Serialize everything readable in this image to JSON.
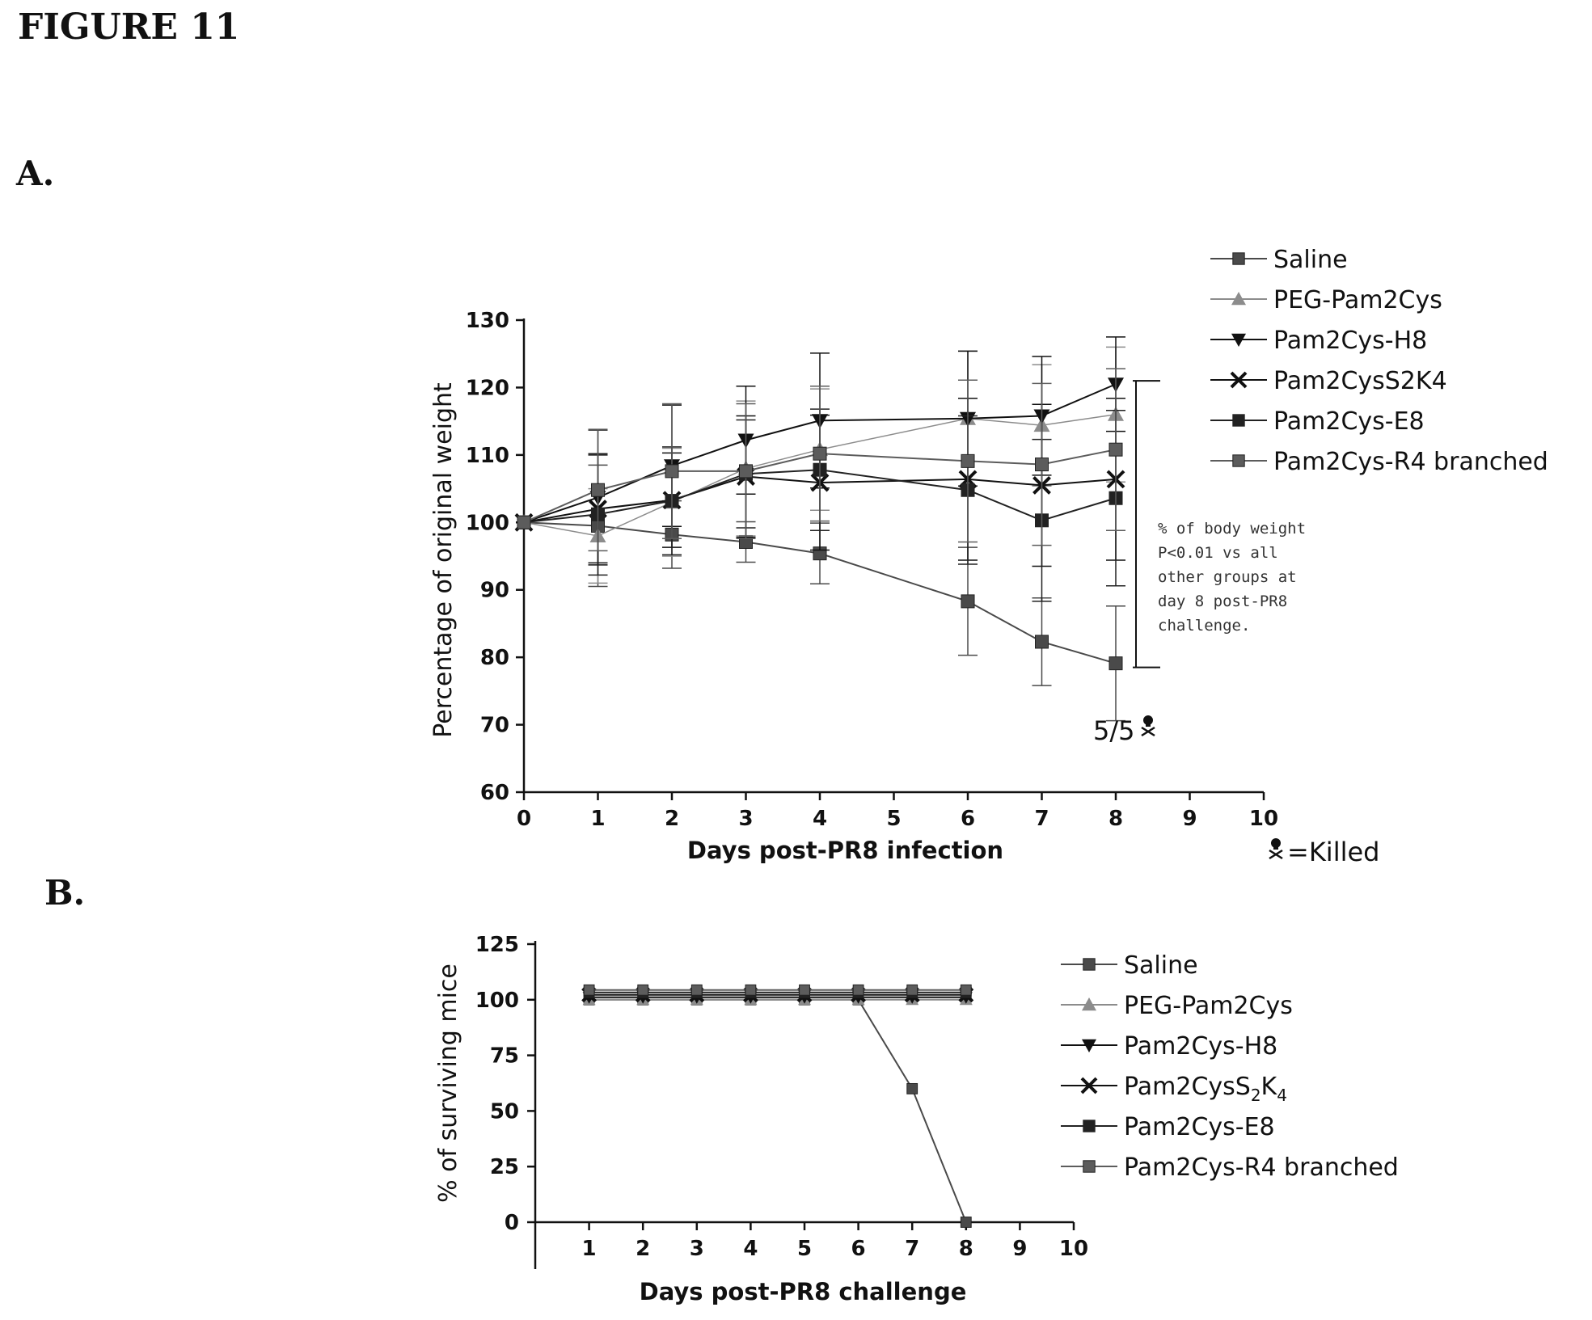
{
  "figure_title": "FIGURE 11",
  "panels": {
    "a_label": "A.",
    "b_label": "B."
  },
  "colors": {
    "Saline": "#4a4a4a",
    "PEG-Pam2Cys": "#8c8c8c",
    "Pam2Cys-H8": "#111111",
    "Pam2CysS2K4": "#111111",
    "Pam2Cys-E8": "#222222",
    "Pam2Cys-R4 branched": "#5c5c5c"
  },
  "chart_data": [
    {
      "type": "line",
      "title": "",
      "xlabel": "Days  post-PR8  infection",
      "ylabel": "Percentage of original weight",
      "xlim": [
        0,
        10
      ],
      "ylim": [
        60,
        130
      ],
      "xticks": [
        "0",
        "1",
        "2",
        "3",
        "4",
        "5",
        "6",
        "7",
        "8",
        "9",
        "10"
      ],
      "yticks": [
        "60",
        "70",
        "80",
        "90",
        "100",
        "110",
        "120",
        "130"
      ],
      "legend_position": "top-right",
      "legend": [
        {
          "label": "Saline",
          "marker": "square"
        },
        {
          "label": "PEG-Pam2Cys",
          "marker": "triangle-up"
        },
        {
          "label": "Pam2Cys-H8",
          "marker": "triangle-down"
        },
        {
          "label": "Pam2CysS2K4",
          "marker": "cross"
        },
        {
          "label": "Pam2Cys-E8",
          "marker": "square"
        },
        {
          "label": "Pam2Cys-R4 branched",
          "marker": "square"
        }
      ],
      "series": [
        {
          "name": "Saline",
          "marker": "square",
          "x": [
            0,
            1,
            2,
            3,
            4,
            6,
            7,
            8
          ],
          "y": [
            100,
            99.5,
            98.2,
            97.1,
            95.4,
            88.3,
            82.3,
            79.1
          ],
          "err": [
            0,
            9,
            5,
            3,
            4.5,
            8,
            6.5,
            8.5
          ]
        },
        {
          "name": "PEG-Pam2Cys",
          "marker": "triangle-up",
          "x": [
            0,
            1,
            2,
            3,
            4,
            6,
            7,
            8
          ],
          "y": [
            100,
            98.0,
            103.0,
            108.0,
            110.8,
            115.4,
            114.4,
            116.0
          ],
          "err": [
            0,
            7,
            8,
            10,
            9,
            10,
            9,
            10
          ]
        },
        {
          "name": "Pam2Cys-H8",
          "marker": "triangle-down",
          "x": [
            0,
            1,
            2,
            3,
            4,
            6,
            7,
            8
          ],
          "y": [
            100,
            103.7,
            108.4,
            112.2,
            115.1,
            115.4,
            115.8,
            120.5
          ],
          "err": [
            0,
            10,
            9,
            8,
            10,
            10,
            8.8,
            7
          ]
        },
        {
          "name": "Pam2CysS2K4",
          "marker": "cross",
          "x": [
            0,
            1,
            2,
            3,
            4,
            6,
            7,
            8
          ],
          "y": [
            100,
            102.0,
            103.3,
            106.8,
            105.9,
            106.4,
            105.5,
            106.4
          ],
          "err": [
            0,
            8,
            7,
            9,
            10,
            12,
            12,
            12
          ]
        },
        {
          "name": "Pam2Cys-E8",
          "marker": "square",
          "x": [
            0,
            1,
            2,
            3,
            4,
            6,
            7,
            8
          ],
          "y": [
            100,
            101.2,
            103.2,
            107.2,
            107.8,
            104.8,
            100.3,
            103.6
          ],
          "err": [
            0,
            9,
            8,
            8,
            9,
            11,
            12,
            13
          ]
        },
        {
          "name": "Pam2Cys-R4 branched",
          "marker": "square",
          "x": [
            0,
            1,
            2,
            3,
            4,
            6,
            7,
            8
          ],
          "y": [
            100,
            104.8,
            107.6,
            107.6,
            110.2,
            109.1,
            108.6,
            110.8
          ],
          "err": [
            0,
            9,
            10,
            10,
            10,
            12,
            12,
            12
          ]
        }
      ],
      "annotations": {
        "significance_note": [
          "% of body weight",
          "P<0.01  vs all",
          "other groups at",
          "day 8 post-PR8",
          "challenge."
        ],
        "bracket_y": [
          78.5,
          121
        ],
        "killed_count": "5/5",
        "killed_legend": "=Killed"
      }
    },
    {
      "type": "line",
      "title": "",
      "xlabel": "Days  post-PR8  challenge",
      "ylabel": "% of surviving mice",
      "xlim": [
        0,
        10
      ],
      "ylim": [
        0,
        125
      ],
      "xticks": [
        "1",
        "2",
        "3",
        "4",
        "5",
        "6",
        "7",
        "8",
        "9",
        "10"
      ],
      "yticks": [
        "0",
        "25",
        "50",
        "75",
        "100",
        "125"
      ],
      "legend_position": "right",
      "legend": [
        {
          "label": "Saline",
          "marker": "square"
        },
        {
          "label": "PEG-Pam2Cys",
          "marker": "triangle-up"
        },
        {
          "label": "Pam2Cys-H8",
          "marker": "triangle-down"
        },
        {
          "label": "Pam2CysS",
          "sub1": "2",
          "mid": "K",
          "sub2": "4",
          "marker": "cross"
        },
        {
          "label": "Pam2Cys-E8",
          "marker": "square"
        },
        {
          "label": "Pam2Cys-R4 branched",
          "marker": "square"
        }
      ],
      "series": [
        {
          "name": "Saline",
          "marker": "square",
          "x": [
            1,
            2,
            3,
            4,
            5,
            6,
            7,
            8
          ],
          "y": [
            100,
            100,
            100,
            100,
            100,
            100,
            60,
            0
          ]
        },
        {
          "name": "PEG-Pam2Cys",
          "marker": "triangle-up",
          "x": [
            1,
            2,
            3,
            4,
            5,
            6,
            7,
            8
          ],
          "y": [
            100,
            100,
            100,
            100,
            100,
            100,
            100,
            100
          ]
        },
        {
          "name": "Pam2Cys-H8",
          "marker": "triangle-down",
          "x": [
            1,
            2,
            3,
            4,
            5,
            6,
            7,
            8
          ],
          "y": [
            100,
            100,
            100,
            100,
            100,
            100,
            100,
            100
          ]
        },
        {
          "name": "Pam2CysS2K4",
          "marker": "cross",
          "x": [
            1,
            2,
            3,
            4,
            5,
            6,
            7,
            8
          ],
          "y": [
            100,
            100,
            100,
            100,
            100,
            100,
            100,
            100
          ]
        },
        {
          "name": "Pam2Cys-E8",
          "marker": "square",
          "x": [
            1,
            2,
            3,
            4,
            5,
            6,
            7,
            8
          ],
          "y": [
            100,
            100,
            100,
            100,
            100,
            100,
            100,
            100
          ]
        },
        {
          "name": "Pam2Cys-R4 branched",
          "marker": "square",
          "x": [
            1,
            2,
            3,
            4,
            5,
            6,
            7,
            8
          ],
          "y": [
            100,
            100,
            100,
            100,
            100,
            100,
            100,
            100
          ]
        }
      ]
    }
  ]
}
